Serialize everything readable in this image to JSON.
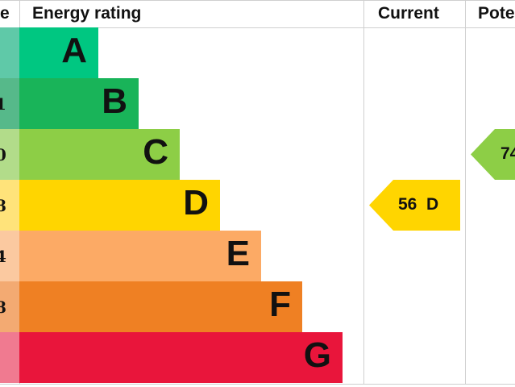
{
  "chart_data": {
    "type": "bar",
    "headers": {
      "score": "e",
      "rating": "Energy rating",
      "current": "Current",
      "potential": "Pote"
    },
    "categories": [
      "A",
      "B",
      "C",
      "D",
      "E",
      "F",
      "G"
    ],
    "score_fragments": [
      "",
      "1",
      "0",
      "8",
      "4",
      "8",
      ""
    ],
    "colors": [
      "#00c781",
      "#19b459",
      "#8dce46",
      "#ffd500",
      "#fcaa65",
      "#ef8023",
      "#e9153b"
    ],
    "score_colors": [
      "#5fc9a8",
      "#56b98a",
      "#b2dc8a",
      "#ffe37a",
      "#fbc9a0",
      "#f3aa72",
      "#f07a90"
    ],
    "current": {
      "value": 56,
      "band": "D",
      "label": "56  D",
      "color": "#ffd500"
    },
    "potential": {
      "value": 74,
      "band": "C",
      "label": "74",
      "color": "#8dce46"
    }
  }
}
